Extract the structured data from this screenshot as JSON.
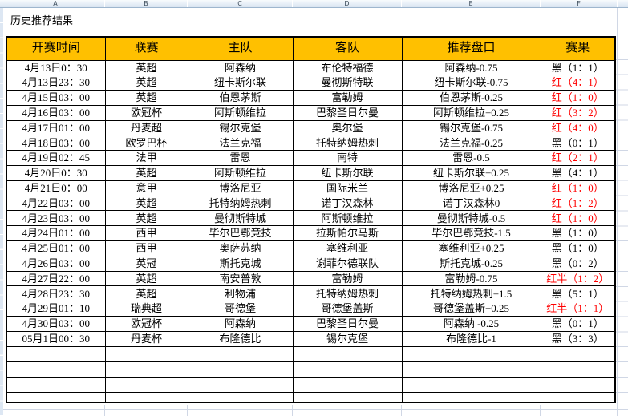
{
  "title": "历史推荐结果",
  "chrome": {
    "column_letters": [
      "A",
      "B",
      "C",
      "D",
      "E",
      "F"
    ]
  },
  "table": {
    "headers": [
      "开赛时间",
      "联赛",
      "主队",
      "客队",
      "推荐盘口",
      "赛果"
    ],
    "rows": [
      {
        "time": "4月13日0：30",
        "league": "英超",
        "home": "阿森纳",
        "away": "布伦特福德",
        "handicap": "阿森纳-0.75",
        "result": "黑（1：1）",
        "result_color": "black"
      },
      {
        "time": "4月13日23：30",
        "league": "英超",
        "home": "纽卡斯尔联",
        "away": "曼彻斯特联",
        "handicap": "纽卡斯尔联-0.75",
        "result": "红（4：1）",
        "result_color": "red"
      },
      {
        "time": "4月15日03：00",
        "league": "英超",
        "home": "伯恩茅斯",
        "away": "富勒姆",
        "handicap": "伯恩茅斯-0.25",
        "result": "红（1：0）",
        "result_color": "red"
      },
      {
        "time": "4月16日03：00",
        "league": "欧冠杯",
        "home": "阿斯顿维拉",
        "away": "巴黎圣日尔曼",
        "handicap": "阿斯顿维拉+0.25",
        "result": "红（3：2）",
        "result_color": "red"
      },
      {
        "time": "4月17日01：00",
        "league": "丹麦超",
        "home": "锡尔克堡",
        "away": "奥尔堡",
        "handicap": "锡尔克堡-0.75",
        "result": "红（4：0）",
        "result_color": "red"
      },
      {
        "time": "4月18日03：00",
        "league": "欧罗巴杯",
        "home": "法兰克福",
        "away": "托特纳姆热刺",
        "handicap": "法兰克福-0.25",
        "result": "黑（0：1）",
        "result_color": "black"
      },
      {
        "time": "4月19日02：45",
        "league": "法甲",
        "home": "雷恩",
        "away": "南特",
        "handicap": "雷恩-0.5",
        "result": "红（2：1）",
        "result_color": "red"
      },
      {
        "time": "4月20日0：30",
        "league": "英超",
        "home": "阿斯顿维拉",
        "away": "纽卡斯尔联",
        "handicap": "纽卡斯尔联+0.25",
        "result": "黑（4：1）",
        "result_color": "black"
      },
      {
        "time": "4月21日0：00",
        "league": "意甲",
        "home": "博洛尼亚",
        "away": "国际米兰",
        "handicap": "博洛尼亚+0.25",
        "result": "红（1：0）",
        "result_color": "red"
      },
      {
        "time": "4月22日03：00",
        "league": "英超",
        "home": "托特纳姆热刺",
        "away": "诺丁汉森林",
        "handicap": "诺丁汉森林0",
        "result": "红（1：2）",
        "result_color": "red"
      },
      {
        "time": "4月23日03：00",
        "league": "英超",
        "home": "曼彻斯特城",
        "away": "阿斯顿维拉",
        "handicap": "曼彻斯特城-0.5",
        "result": "红（1：0）",
        "result_color": "red"
      },
      {
        "time": "4月24日01：00",
        "league": "西甲",
        "home": "毕尔巴鄂竞技",
        "away": "拉斯帕尔马斯",
        "handicap": "毕尔巴鄂竞技-1.5",
        "result": "黑（1：0）",
        "result_color": "black"
      },
      {
        "time": "4月25日01：00",
        "league": "西甲",
        "home": "奥萨苏纳",
        "away": "塞维利亚",
        "handicap": "塞维利亚+0.25",
        "result": "黑（1：0）",
        "result_color": "black"
      },
      {
        "time": "4月26日03：00",
        "league": "英冠",
        "home": "斯托克城",
        "away": "谢菲尔德联队",
        "handicap": "斯托克城-0.25",
        "result": "黑（0：2）",
        "result_color": "black"
      },
      {
        "time": "4月27日22：00",
        "league": "英超",
        "home": "南安普敦",
        "away": "富勒姆",
        "handicap": "富勒姆-0.75",
        "result": "红半（1：2）",
        "result_color": "red"
      },
      {
        "time": "4月28日23：30",
        "league": "英超",
        "home": "利物浦",
        "away": "托特纳姆热刺",
        "handicap": "托特纳姆热刺+1.5",
        "result": "黑（5：1）",
        "result_color": "black"
      },
      {
        "time": "4月29日01：10",
        "league": "瑞典超",
        "home": "哥德堡",
        "away": "哥德堡盖斯",
        "handicap": "哥德堡盖斯+0.25",
        "result": "红半（1：1）",
        "result_color": "red"
      },
      {
        "time": "4月30日03：00",
        "league": "欧冠杯",
        "home": "阿森纳",
        "away": "巴黎圣日尔曼",
        "handicap": "阿森纳 -0.25",
        "result": "黑（0：1）",
        "result_color": "black"
      },
      {
        "time": "05月1日00：30",
        "league": "丹麦杯",
        "home": "布隆德比",
        "away": "锡尔克堡",
        "handicap": "布隆德比-1",
        "result": "黑（3：3）",
        "result_color": "black"
      }
    ],
    "empty_row_count": 4
  },
  "colors": {
    "header_bg": "#FFC000",
    "result_red": "#FF0000",
    "text_black": "#000000",
    "chrome_bg": "#DDE7F3",
    "gridline": "#D0D7E5"
  }
}
